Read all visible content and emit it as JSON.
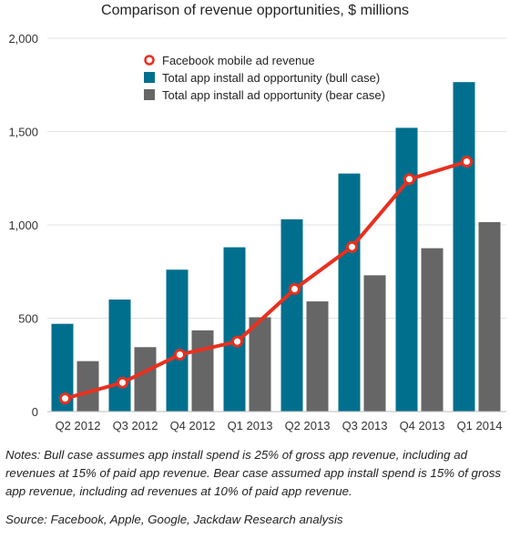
{
  "chart_data": {
    "type": "bar",
    "title": "Comparison of revenue opportunities, $ millions",
    "categories": [
      "Q2 2012",
      "Q3 2012",
      "Q4 2012",
      "Q1 2013",
      "Q2 2013",
      "Q3 2013",
      "Q4 2013",
      "Q1 2014"
    ],
    "series": [
      {
        "name": "Total app install ad opportunity (bull case)",
        "kind": "bar",
        "color": "#006f8e",
        "values": [
          470,
          600,
          760,
          880,
          1030,
          1275,
          1520,
          1765
        ]
      },
      {
        "name": "Total app install ad opportunity (bear case)",
        "kind": "bar",
        "color": "#666666",
        "values": [
          270,
          345,
          435,
          505,
          590,
          730,
          875,
          1015
        ]
      },
      {
        "name": "Facebook mobile ad revenue",
        "kind": "line",
        "color": "#e8301f",
        "values": [
          70,
          155,
          305,
          375,
          656,
          882,
          1245,
          1339
        ]
      }
    ],
    "legend_order": [
      2,
      0,
      1
    ],
    "ylim": [
      0,
      2000
    ],
    "yticks": [
      0,
      500,
      1000,
      1500,
      2000
    ],
    "ytick_labels": [
      "0",
      "500",
      "1,000",
      "1,500",
      "2,000"
    ],
    "xlabel": "",
    "ylabel": "",
    "grid": true,
    "legend_position": "top-center"
  },
  "notes": "Notes: Bull case assumes app install spend is 25% of gross app revenue, including ad revenues at 15% of paid app revenue. Bear case assumed app install spend is 15% of gross app revenue, including ad revenues at 10% of paid app revenue.",
  "source": "Source: Facebook, Apple, Google, Jackdaw Research analysis"
}
